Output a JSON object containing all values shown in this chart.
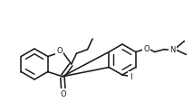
{
  "bg": "#ffffff",
  "lc": "#1a1a1a",
  "lw": 1.15,
  "fs": 6.0,
  "figsize": [
    2.13,
    1.14
  ],
  "dpi": 100,
  "xlim": [
    0,
    213
  ],
  "ylim": [
    114,
    0
  ]
}
